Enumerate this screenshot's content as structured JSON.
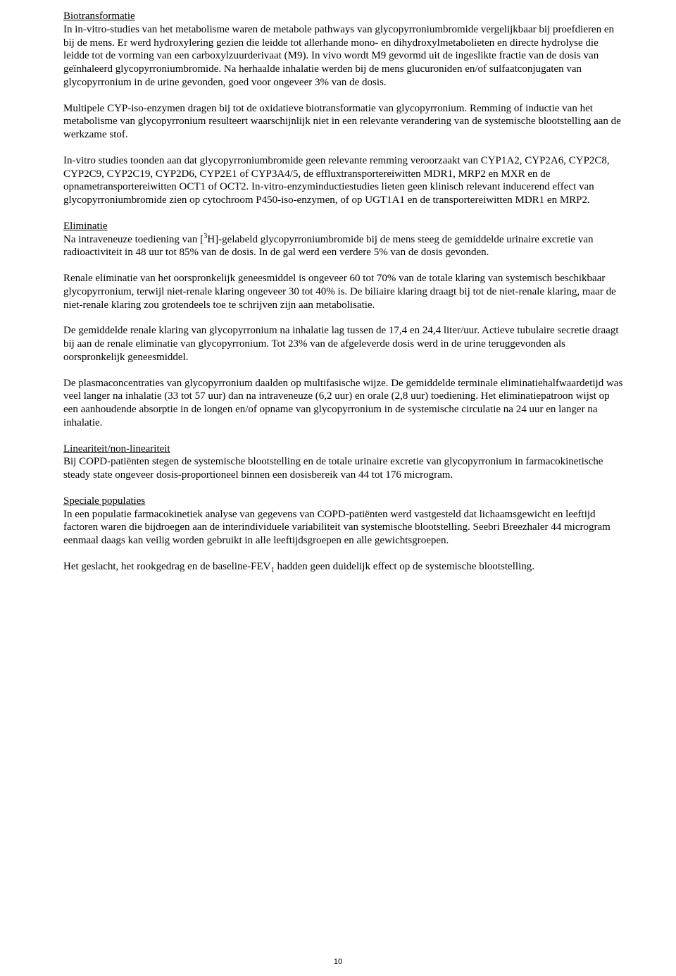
{
  "document": {
    "page_number": "10",
    "font_family": "Times New Roman",
    "font_size_pt": 11,
    "text_color": "#000000",
    "background_color": "#ffffff",
    "sections": {
      "biotransformatie": {
        "heading": "Biotransformatie",
        "p1": "In in-vitro-studies van het metabolisme waren de metabole pathways van glycopyrroniumbromide vergelijkbaar bij proefdieren en bij de mens. Er werd hydroxylering gezien die leidde tot allerhande mono- en dihydroxylmetabolieten en directe hydrolyse die leidde tot de vorming van een carboxylzuurderivaat (M9). In vivo wordt M9 gevormd uit de ingeslikte fractie van de dosis van geïnhaleerd glycopyrroniumbromide. Na herhaalde inhalatie werden bij de mens glucuroniden en/of sulfaatconjugaten van glycopyrronium in de urine gevonden, goed voor ongeveer 3% van de dosis.",
        "p2": "Multipele CYP-iso-enzymen dragen bij tot de oxidatieve biotransformatie van glycopyrronium. Remming of inductie van het metabolisme van glycopyrronium resulteert waarschijnlijk niet in een relevante verandering van de systemische blootstelling aan de werkzame stof.",
        "p3": "In-vitro studies toonden aan dat glycopyrroniumbromide geen relevante remming veroorzaakt van CYP1A2, CYP2A6, CYP2C8, CYP2C9, CYP2C19, CYP2D6, CYP2E1 of CYP3A4/5, de effluxtransportereiwitten MDR1, MRP2 en MXR en de opnametransportereiwitten OCT1 of OCT2. In-vitro-enzyminductiestudies lieten geen klinisch relevant inducerend effect van glycopyrroniumbromide zien op cytochroom P450-iso-enzymen, of op UGT1A1 en de transportereiwitten MDR1 en MRP2."
      },
      "eliminatie": {
        "heading": "Eliminatie",
        "p1_pre": "Na intraveneuze toediening van [",
        "p1_sup": "3",
        "p1_post": "H]-gelabeld glycopyrroniumbromide bij de mens steeg de gemiddelde urinaire excretie van radioactiviteit in 48 uur tot 85% van de dosis. In de gal werd een verdere 5% van de dosis gevonden.",
        "p2": "Renale eliminatie van het oorspronkelijk geneesmiddel is ongeveer 60 tot 70% van de totale klaring van systemisch beschikbaar glycopyrronium, terwijl niet-renale klaring ongeveer 30 tot 40% is. De biliaire klaring draagt bij tot de niet-renale klaring, maar de niet-renale klaring zou grotendeels toe te schrijven zijn aan metabolisatie.",
        "p3": "De gemiddelde renale klaring van glycopyrronium na inhalatie lag tussen de 17,4 en 24,4 liter/uur. Actieve tubulaire secretie draagt bij aan de renale eliminatie van glycopyrronium. Tot 23% van de afgeleverde dosis werd in de urine teruggevonden als oorspronkelijk geneesmiddel.",
        "p4": "De plasmaconcentraties van glycopyrronium daalden op multifasische wijze. De gemiddelde terminale eliminatiehalfwaardetijd was veel langer na inhalatie (33 tot 57 uur) dan na intraveneuze (6,2 uur) en orale (2,8 uur) toediening. Het eliminatiepatroon wijst op een aanhoudende absorptie in de longen en/of opname van glycopyrronium in de systemische circulatie na 24 uur en langer na inhalatie."
      },
      "lineariteit": {
        "heading": "Lineariteit/non-lineariteit",
        "p1": "Bij COPD-patiënten stegen de systemische blootstelling en de totale urinaire excretie van glycopyrronium in farmacokinetische steady state ongeveer dosis-proportioneel binnen een dosisbereik van 44 tot 176 microgram."
      },
      "speciale": {
        "heading": "Speciale populaties",
        "p1": "In een populatie farmacokinetiek analyse van gegevens van COPD-patiënten werd vastgesteld dat lichaamsgewicht en leeftijd factoren waren die bijdroegen aan de interindividuele variabiliteit van systemische blootstelling. Seebri Breezhaler 44 microgram eenmaal daags kan veilig worden gebruikt in alle leeftijdsgroepen en alle gewichtsgroepen.",
        "p2_pre": "Het geslacht, het rookgedrag en de baseline-FEV",
        "p2_sub": "1",
        "p2_post": " hadden geen duidelijk effect op de systemische blootstelling."
      }
    }
  }
}
